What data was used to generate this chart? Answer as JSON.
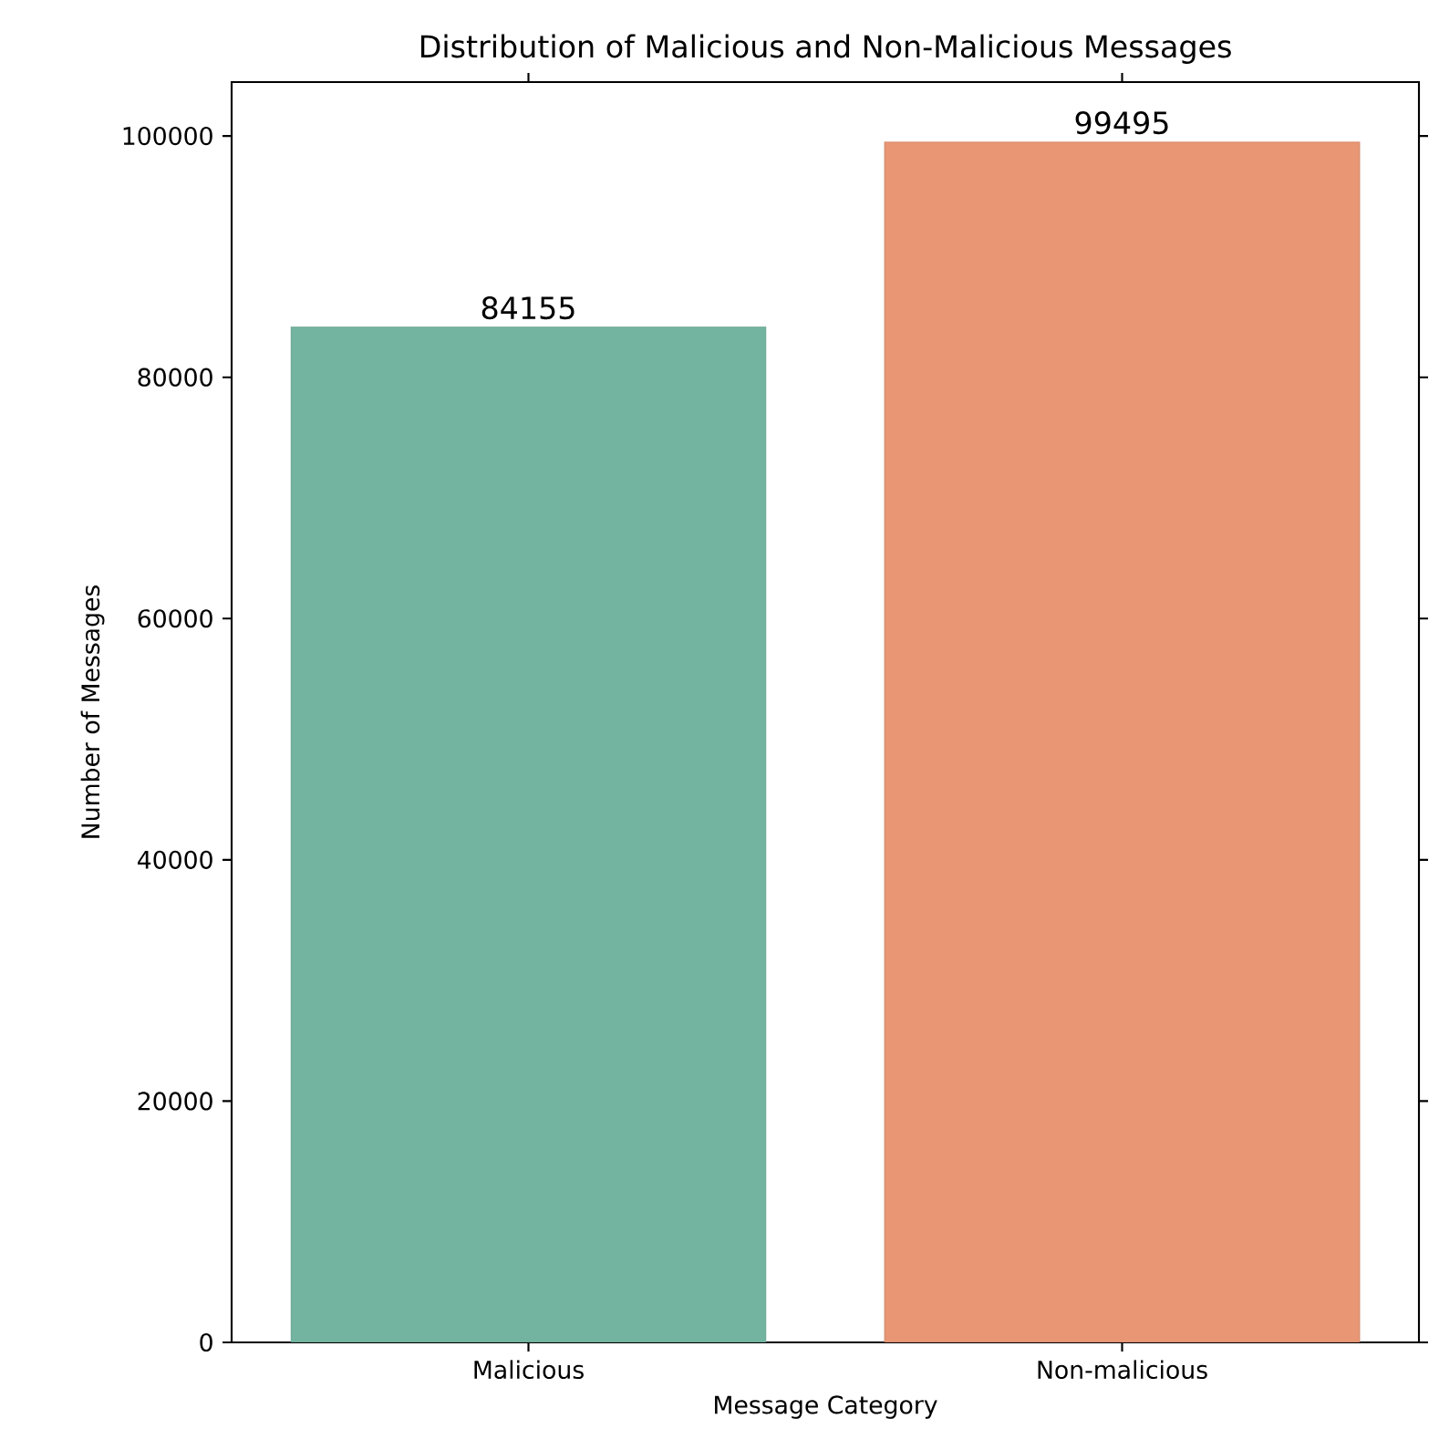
{
  "chart_data": {
    "type": "bar",
    "title": "Distribution of Malicious and Non-Malicious Messages",
    "xlabel": "Message Category",
    "ylabel": "Number of Messages",
    "categories": [
      "Malicious",
      "Non-malicious"
    ],
    "values": [
      84155,
      99495
    ],
    "colors": [
      "#73b4a0",
      "#e89674"
    ],
    "data_labels": true,
    "ylim": [
      0,
      104470
    ],
    "yticks": [
      0,
      20000,
      40000,
      60000,
      80000,
      100000
    ],
    "grid": false
  }
}
